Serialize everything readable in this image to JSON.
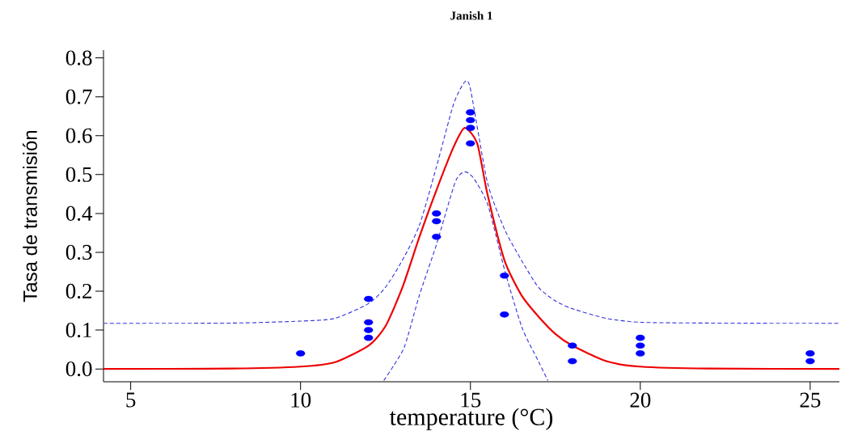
{
  "chart_data": {
    "type": "scatter",
    "title": "Janish 1",
    "xlabel": "temperature (°C)",
    "ylabel": "Tasa de transmisión",
    "xlim": [
      4.2,
      25.86
    ],
    "ylim": [
      -0.033,
      0.82
    ],
    "xticks": [
      5,
      10,
      15,
      20,
      25
    ],
    "yticks": [
      {
        "value": 0,
        "label": "0.0"
      },
      0.1,
      0.2,
      0.3,
      0.4,
      0.5,
      0.6,
      0.7,
      0.8
    ],
    "series": [
      {
        "type": "line",
        "color": "#3333dd",
        "line_style": "dashed",
        "x": [
          4.2,
          8,
          10,
          11,
          12,
          12.5,
          13,
          13.5,
          14,
          14.5,
          14.83,
          15,
          15.5,
          16,
          16.5,
          17,
          17.5,
          18,
          19,
          20,
          22,
          25.86
        ],
        "values": [
          0.117,
          0.118,
          0.123,
          0.13,
          0.168,
          0.21,
          0.28,
          0.37,
          0.52,
          0.68,
          0.738,
          0.72,
          0.48,
          0.36,
          0.28,
          0.21,
          0.175,
          0.155,
          0.13,
          0.12,
          0.118,
          0.117
        ]
      },
      {
        "type": "line",
        "color": "#3333dd",
        "line_style": "dashed",
        "x": [
          12.45,
          12.75,
          13.07,
          13.5,
          14.0,
          14.55,
          14.83,
          15.1,
          15.52,
          16.02,
          16.52,
          17.0,
          17.28
        ],
        "values": [
          -0.03,
          0.01,
          0.06,
          0.19,
          0.32,
          0.48,
          0.507,
          0.49,
          0.42,
          0.25,
          0.106,
          0.02,
          -0.03
        ]
      },
      {
        "type": "line",
        "color": "#ee0000",
        "line_style": "solid",
        "x": [
          4.2,
          8,
          10,
          11,
          12,
          12.5,
          13,
          13.5,
          14,
          14.5,
          14.83,
          15.2,
          15.5,
          16,
          16.5,
          17,
          17.5,
          18,
          19,
          20,
          22,
          25.86
        ],
        "values": [
          0,
          0.001,
          0.006,
          0.017,
          0.06,
          0.11,
          0.21,
          0.34,
          0.46,
          0.57,
          0.62,
          0.58,
          0.45,
          0.28,
          0.19,
          0.135,
          0.09,
          0.06,
          0.02,
          0.006,
          0.001,
          0
        ]
      },
      {
        "type": "scatter",
        "color": "#0000ff",
        "marker": "circle",
        "x": [
          10,
          12,
          12,
          12,
          12,
          14,
          14,
          14,
          15,
          15,
          15,
          15,
          16,
          16,
          18,
          18,
          20,
          20,
          20,
          25,
          25
        ],
        "values": [
          0.04,
          0.18,
          0.12,
          0.1,
          0.08,
          0.4,
          0.38,
          0.34,
          0.66,
          0.64,
          0.62,
          0.58,
          0.24,
          0.14,
          0.06,
          0.02,
          0.08,
          0.06,
          0.04,
          0.04,
          0.02
        ]
      }
    ]
  }
}
